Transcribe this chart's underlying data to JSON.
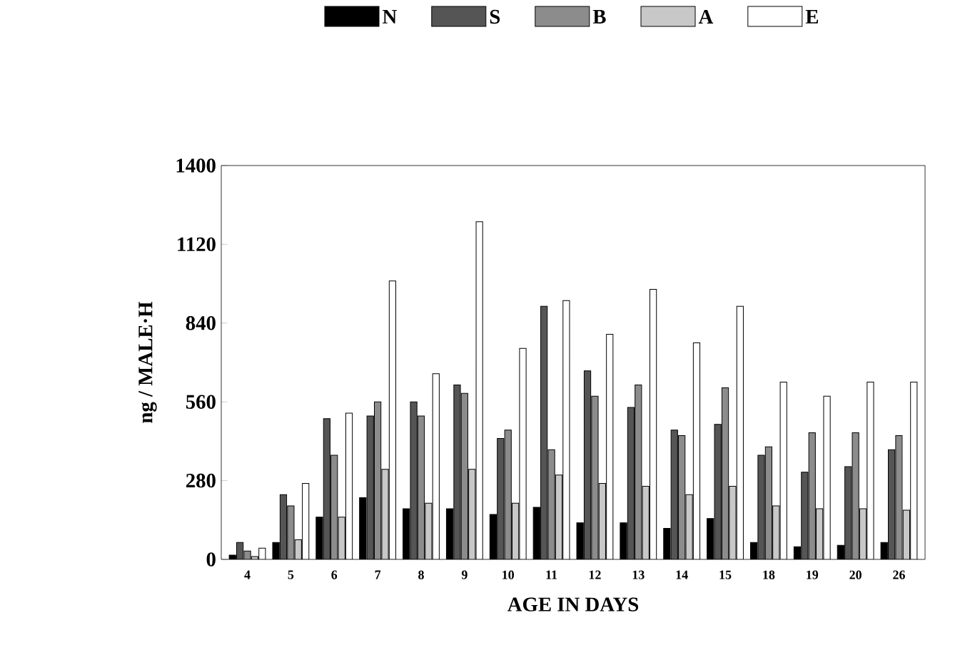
{
  "chart_data": {
    "type": "bar",
    "xlabel": "AGE IN DAYS",
    "ylabel": "ng / MALE·H",
    "categories": [
      "4",
      "5",
      "6",
      "7",
      "8",
      "9",
      "10",
      "11",
      "12",
      "13",
      "14",
      "15",
      "18",
      "19",
      "20",
      "26"
    ],
    "series": [
      {
        "name": "N",
        "color": "#000000",
        "values": [
          15,
          60,
          150,
          220,
          180,
          180,
          160,
          185,
          130,
          130,
          110,
          145,
          60,
          45,
          50,
          60
        ]
      },
      {
        "name": "S",
        "color": "#555555",
        "values": [
          60,
          230,
          500,
          510,
          560,
          620,
          430,
          900,
          670,
          540,
          460,
          480,
          370,
          310,
          330,
          390
        ]
      },
      {
        "name": "B",
        "color": "#8c8c8c",
        "values": [
          30,
          190,
          370,
          560,
          510,
          590,
          460,
          390,
          580,
          620,
          440,
          610,
          400,
          450,
          450,
          440
        ]
      },
      {
        "name": "A",
        "color": "#c8c8c8",
        "values": [
          10,
          70,
          150,
          320,
          200,
          320,
          200,
          300,
          270,
          260,
          230,
          260,
          190,
          180,
          180,
          175
        ]
      },
      {
        "name": "E",
        "color": "#ffffff",
        "values": [
          40,
          270,
          520,
          990,
          660,
          1200,
          750,
          920,
          800,
          960,
          770,
          900,
          630,
          580,
          630,
          630
        ]
      }
    ],
    "ylim": [
      0,
      1400
    ],
    "yticks": [
      0,
      280,
      560,
      840,
      1120,
      1400
    ],
    "legend": "top"
  }
}
